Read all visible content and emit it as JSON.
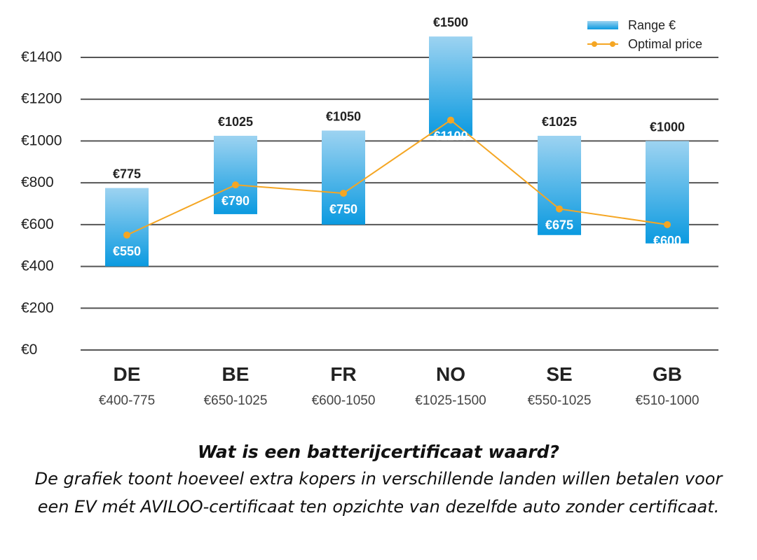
{
  "chart_data": {
    "type": "bar",
    "subtype": "floating-range-with-line",
    "categories": [
      "DE",
      "BE",
      "FR",
      "NO",
      "SE",
      "GB"
    ],
    "range_labels": [
      "€400-775",
      "€650-1025",
      "€600-1050",
      "€1025-1500",
      "€550-1025",
      "€510-1000"
    ],
    "series": [
      {
        "name": "Range €",
        "kind": "range",
        "low": [
          400,
          650,
          600,
          1025,
          550,
          510
        ],
        "high": [
          775,
          1025,
          1050,
          1500,
          1025,
          1000
        ],
        "high_labels": [
          "€775",
          "€1025",
          "€1050",
          "€1500",
          "€1025",
          "€1000"
        ]
      },
      {
        "name": "Optimal price",
        "kind": "line",
        "values": [
          550,
          790,
          750,
          1100,
          675,
          600
        ],
        "labels": [
          "€550",
          "€790",
          "€750",
          "€1100",
          "€675",
          "€600"
        ]
      }
    ],
    "ylim": [
      0,
      1500
    ],
    "yticks": [
      0,
      200,
      400,
      600,
      800,
      1000,
      1200,
      1400
    ],
    "ytick_labels": [
      "€0",
      "€200",
      "€400",
      "€600",
      "€800",
      "€1000",
      "€1200",
      "€1400"
    ],
    "grid": true,
    "legend_position": "top-right",
    "colors": {
      "bar_top": "#9dd3f1",
      "bar_bottom": "#0b9ae0",
      "line": "#f5a623",
      "grid": "#555555",
      "text": "#222222"
    }
  },
  "caption": {
    "title": "Wat is een batterijcertificaat waard?",
    "body": "De grafiek toont hoeveel extra kopers in verschillende landen willen betalen voor een EV mét AVILOO-certificaat ten opzichte van dezelfde auto zonder certificaat."
  }
}
